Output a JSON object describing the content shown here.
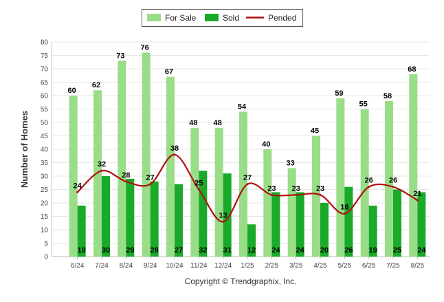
{
  "chart_data": {
    "type": "bar",
    "ylabel": "Number of Homes",
    "ylim": [
      0,
      80
    ],
    "yticks": [
      0,
      5,
      10,
      15,
      20,
      25,
      30,
      35,
      40,
      45,
      50,
      55,
      60,
      65,
      70,
      75,
      80
    ],
    "grid": true,
    "legend_position": "top-center",
    "categories": [
      "6/24",
      "7/24",
      "8/24",
      "9/24",
      "10/24",
      "11/24",
      "12/24",
      "1/25",
      "2/25",
      "3/25",
      "4/25",
      "5/25",
      "6/25",
      "7/25",
      "8/25"
    ],
    "series": [
      {
        "name": "For Sale",
        "kind": "bar",
        "color": "#99dd88",
        "values": [
          60,
          62,
          73,
          76,
          67,
          48,
          48,
          54,
          40,
          33,
          45,
          59,
          55,
          58,
          68
        ]
      },
      {
        "name": "Sold",
        "kind": "bar",
        "color": "#1aaa2a",
        "values": [
          19,
          30,
          29,
          28,
          27,
          32,
          31,
          12,
          24,
          24,
          20,
          26,
          19,
          25,
          24
        ]
      },
      {
        "name": "Pended",
        "kind": "line",
        "color": "#b01010",
        "values": [
          24,
          32,
          28,
          27,
          38,
          25,
          13,
          27,
          23,
          23,
          23,
          16,
          26,
          26,
          21
        ]
      }
    ]
  },
  "footer": {
    "copyright": "Copyright © Trendgraphix, Inc."
  }
}
